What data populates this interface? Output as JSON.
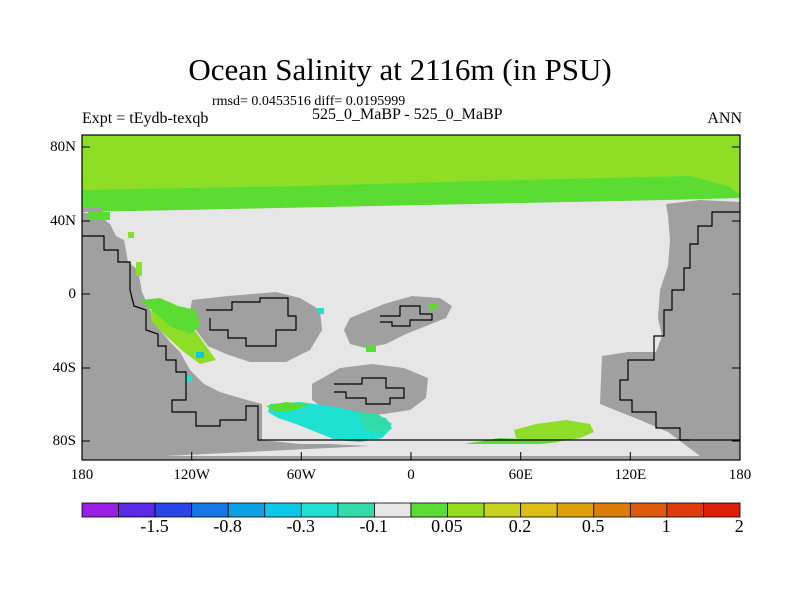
{
  "title": "Ocean Salinity at 2116m (in PSU)",
  "stats": "rmsd= 0.0453516 diff= 0.0195999",
  "left_label": "Expt = tEydb-texqb",
  "center_label": "525_0_MaBP - 525_0_MaBP",
  "right_label": "ANN",
  "lat_ticks": [
    "80N",
    "40N",
    "0",
    "40S",
    "80S"
  ],
  "lon_ticks": [
    "180",
    "120W",
    "60W",
    "0",
    "60E",
    "120E",
    "180"
  ],
  "colorbar": {
    "labels": [
      "-1.5",
      "-0.8",
      "-0.3",
      "-0.1",
      "0.05",
      "0.2",
      "0.5",
      "1",
      "2"
    ],
    "colors": [
      "#9b1ee6",
      "#5a28e6",
      "#2846e6",
      "#1478e6",
      "#0aa0e6",
      "#0ac8e6",
      "#1ee1d2",
      "#32dcaa",
      "#e6e6e6",
      "#5adc32",
      "#96dc1e",
      "#c8d21e",
      "#dcbe14",
      "#dca00a",
      "#dc7d0a",
      "#dc5a0a",
      "#dc3c0a",
      "#dc1e0a"
    ]
  },
  "field_colors": {
    "land": "#a0a0a0",
    "neutral": "#e6e6e6",
    "green_light": "#8ede28",
    "green": "#5adc32",
    "cyan": "#1ee1d2",
    "teal": "#32dcaa",
    "blue": "#0ac8e6"
  }
}
